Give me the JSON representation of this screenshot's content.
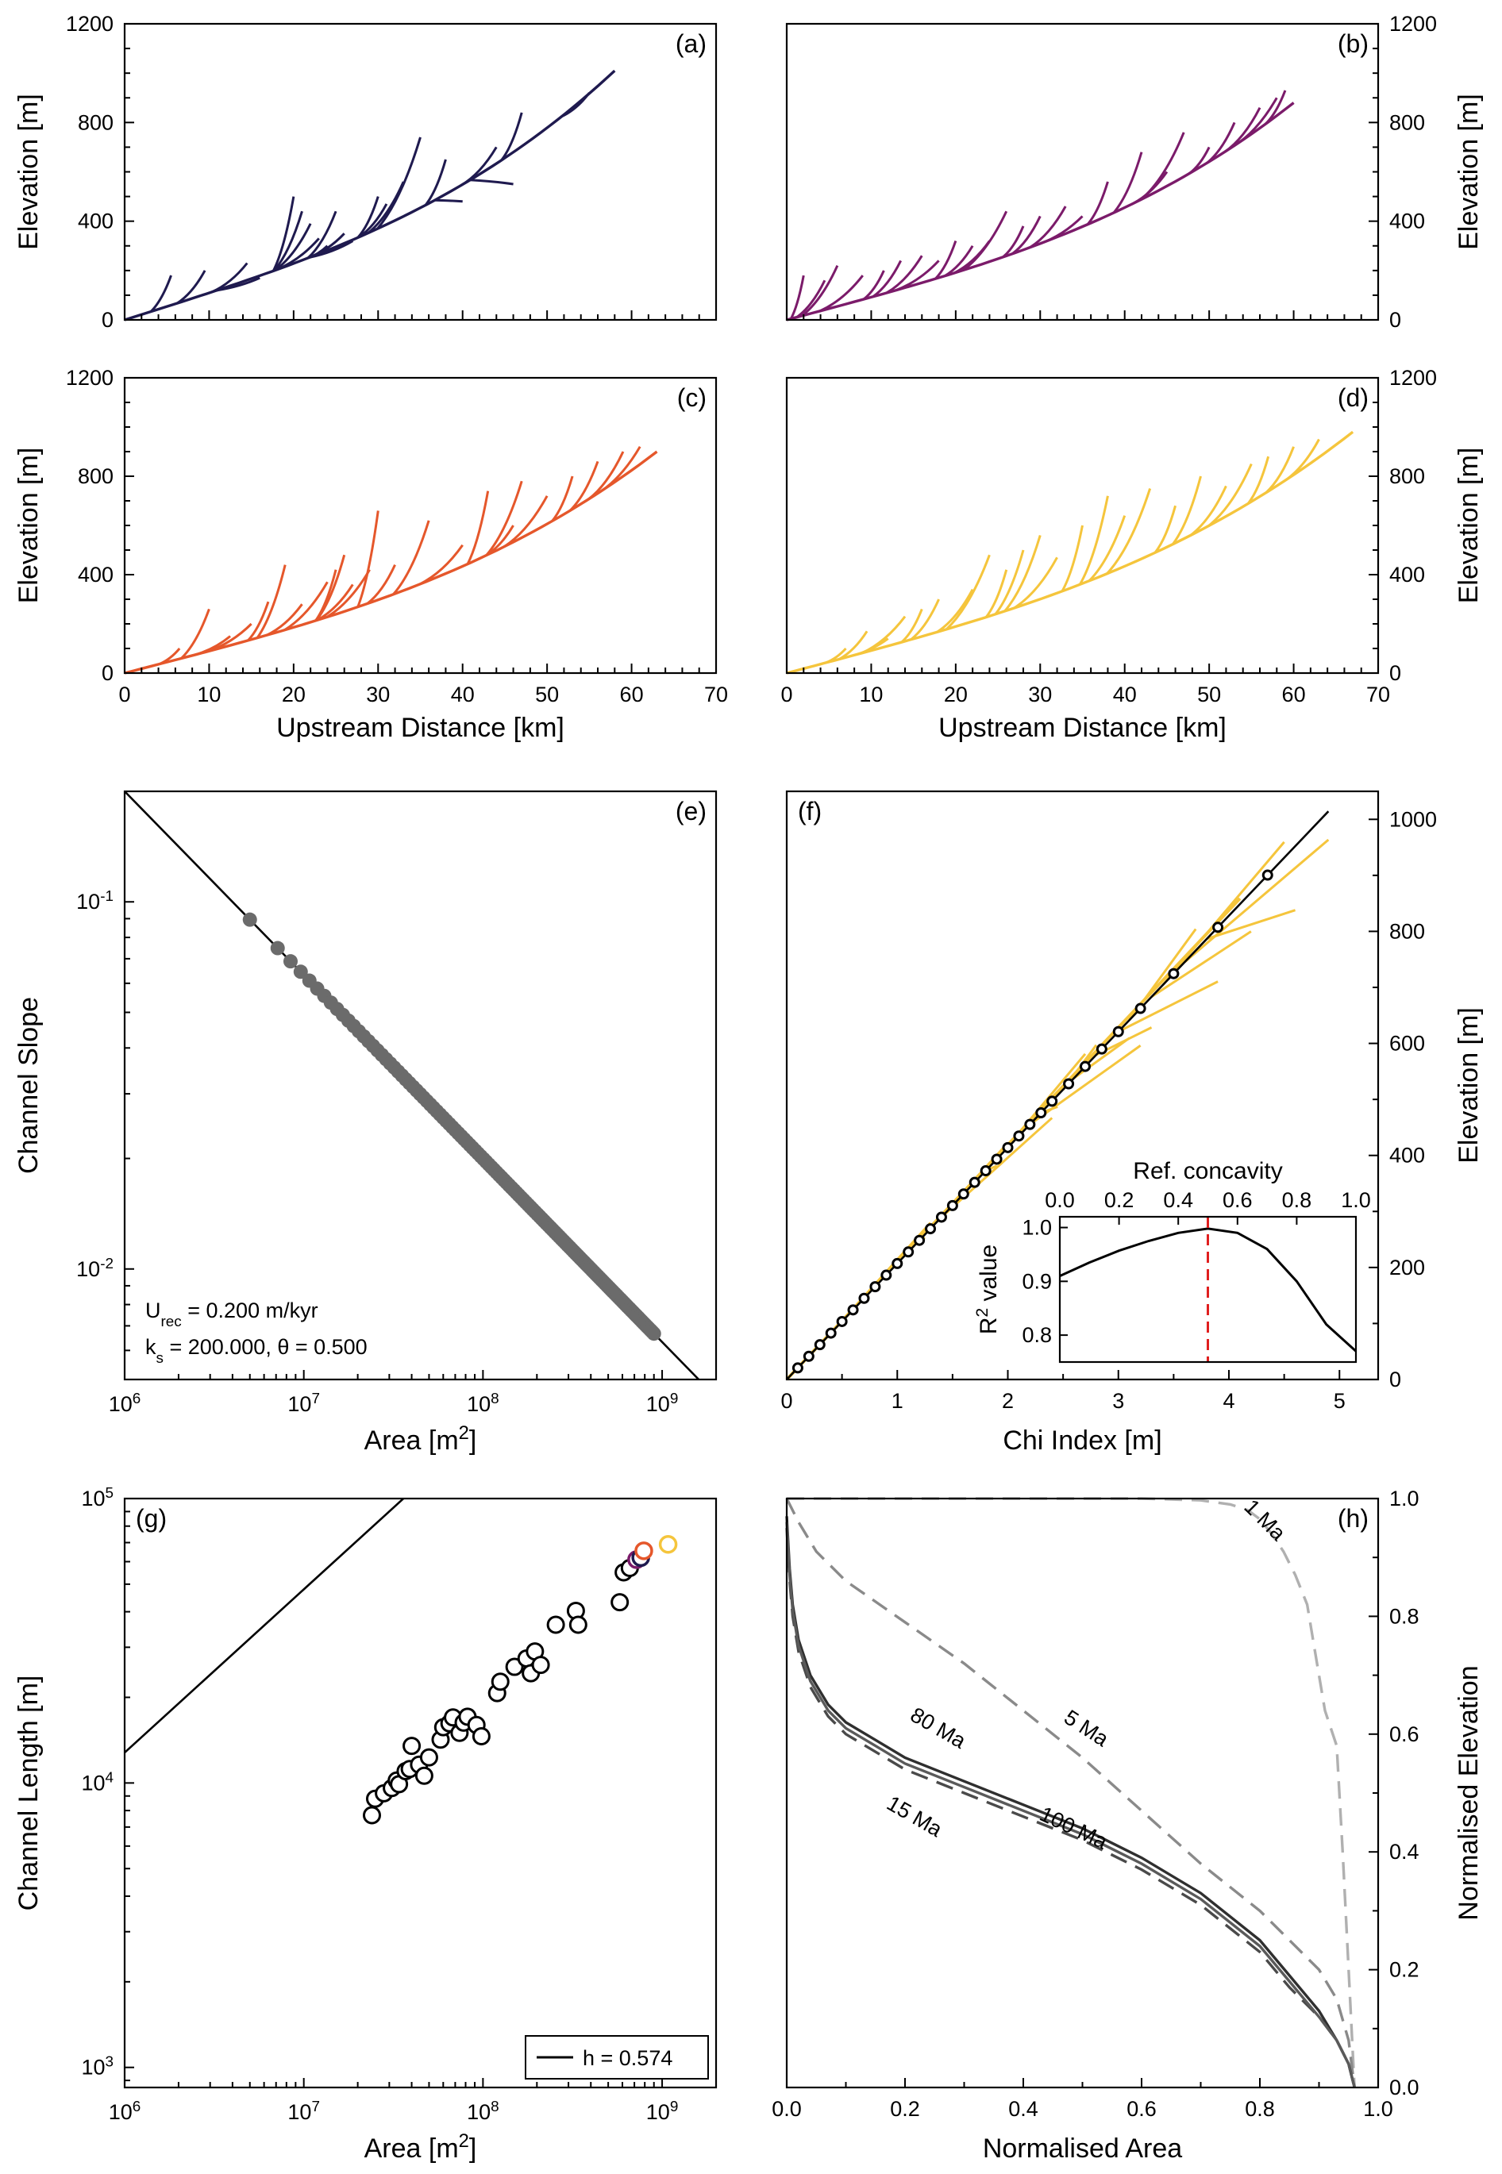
{
  "chart_data": [
    {
      "id": "a",
      "type": "line",
      "letter": "(a)",
      "xlim": [
        0,
        70
      ],
      "ylim": [
        0,
        1200
      ],
      "xticks": [
        0,
        10,
        20,
        30,
        40,
        50,
        60,
        70
      ],
      "yticks": [
        0,
        400,
        800,
        1200
      ],
      "ylabel": "Elevation [m]",
      "xlabel": "",
      "color": "#1f1a4f",
      "trunk": {
        "length": 58,
        "top": 1010
      },
      "tributaries": [
        [
          5.5,
          180
        ],
        [
          9.5,
          200
        ],
        [
          14.5,
          230
        ],
        [
          16,
          170
        ],
        [
          20,
          500
        ],
        [
          21,
          440
        ],
        [
          22,
          390
        ],
        [
          23,
          330
        ],
        [
          24,
          300
        ],
        [
          25,
          440
        ],
        [
          26,
          350
        ],
        [
          27,
          320
        ],
        [
          30,
          500
        ],
        [
          31,
          470
        ],
        [
          33,
          560
        ],
        [
          35,
          740
        ],
        [
          38,
          650
        ],
        [
          40,
          480
        ],
        [
          44,
          700
        ],
        [
          46,
          550
        ],
        [
          47,
          840
        ],
        [
          55,
          920
        ]
      ]
    },
    {
      "id": "b",
      "type": "line",
      "letter": "(b)",
      "xlim": [
        0,
        70
      ],
      "ylim": [
        0,
        1200
      ],
      "xticks": [
        0,
        10,
        20,
        30,
        40,
        50,
        60,
        70
      ],
      "yticks": [
        0,
        400,
        800,
        1200
      ],
      "ylabel": "Elevation [m]",
      "xlabel": "",
      "color": "#7b1b6a",
      "trunk": {
        "length": 60,
        "top": 880
      },
      "tributaries": [
        [
          2,
          180
        ],
        [
          4.5,
          160
        ],
        [
          6,
          220
        ],
        [
          9,
          180
        ],
        [
          11.5,
          200
        ],
        [
          13.5,
          240
        ],
        [
          16,
          260
        ],
        [
          18,
          240
        ],
        [
          20,
          320
        ],
        [
          22,
          300
        ],
        [
          24,
          320
        ],
        [
          26,
          440
        ],
        [
          28,
          380
        ],
        [
          30,
          420
        ],
        [
          33,
          460
        ],
        [
          35,
          420
        ],
        [
          38,
          560
        ],
        [
          42,
          680
        ],
        [
          45,
          600
        ],
        [
          47,
          760
        ],
        [
          50,
          700
        ],
        [
          53,
          800
        ],
        [
          56,
          860
        ],
        [
          58,
          900
        ],
        [
          59,
          930
        ]
      ]
    },
    {
      "id": "c",
      "type": "line",
      "letter": "(c)",
      "xlim": [
        0,
        70
      ],
      "ylim": [
        0,
        1200
      ],
      "xticks": [
        0,
        10,
        20,
        30,
        40,
        50,
        60,
        70
      ],
      "yticks": [
        0,
        400,
        800,
        1200
      ],
      "ylabel": "Elevation [m]",
      "xlabel": "Upstream Distance [km]",
      "color": "#e5572b",
      "trunk": {
        "length": 63,
        "top": 900
      },
      "tributaries": [
        [
          6.5,
          100
        ],
        [
          10,
          260
        ],
        [
          12.5,
          150
        ],
        [
          15,
          200
        ],
        [
          17,
          290
        ],
        [
          19,
          440
        ],
        [
          21,
          280
        ],
        [
          24,
          370
        ],
        [
          25,
          420
        ],
        [
          26,
          480
        ],
        [
          27,
          360
        ],
        [
          29,
          420
        ],
        [
          30,
          660
        ],
        [
          32,
          440
        ],
        [
          36,
          620
        ],
        [
          40,
          520
        ],
        [
          43,
          740
        ],
        [
          46,
          600
        ],
        [
          47,
          780
        ],
        [
          50,
          720
        ],
        [
          53,
          800
        ],
        [
          56,
          860
        ],
        [
          59,
          900
        ],
        [
          61,
          920
        ]
      ]
    },
    {
      "id": "d",
      "type": "line",
      "letter": "(d)",
      "xlim": [
        0,
        70
      ],
      "ylim": [
        0,
        1200
      ],
      "xticks": [
        0,
        10,
        20,
        30,
        40,
        50,
        60,
        70
      ],
      "yticks": [
        0,
        400,
        800,
        1200
      ],
      "ylabel": "Elevation [m]",
      "xlabel": "Upstream Distance [km]",
      "color": "#f5c53c",
      "trunk": {
        "length": 67,
        "top": 980
      },
      "tributaries": [
        [
          7,
          100
        ],
        [
          9.5,
          170
        ],
        [
          12,
          140
        ],
        [
          14,
          230
        ],
        [
          16,
          260
        ],
        [
          18,
          300
        ],
        [
          22,
          340
        ],
        [
          24,
          480
        ],
        [
          26,
          420
        ],
        [
          28,
          500
        ],
        [
          30,
          560
        ],
        [
          32,
          470
        ],
        [
          35,
          600
        ],
        [
          38,
          720
        ],
        [
          40,
          640
        ],
        [
          43,
          750
        ],
        [
          46,
          680
        ],
        [
          49,
          800
        ],
        [
          52,
          760
        ],
        [
          55,
          850
        ],
        [
          57,
          880
        ],
        [
          60,
          920
        ],
        [
          63,
          950
        ]
      ]
    },
    {
      "id": "e",
      "type": "scatter",
      "letter": "(e)",
      "xscale": "log",
      "yscale": "log",
      "xlim": [
        1000000,
        2000000000
      ],
      "ylim": [
        0.005,
        0.2
      ],
      "xlabel": "Area [m2]",
      "ylabel": "Channel Slope",
      "x_tick_labels": [
        "10^6",
        "10^7",
        "10^8",
        "10^9"
      ],
      "y_tick_labels": [
        "10^-2",
        "10^-1"
      ],
      "fit": {
        "ks": 200,
        "theta": 0.5
      },
      "points_x_range": [
        5000000,
        900000000
      ],
      "point_color": "#6b6b6b",
      "annotations": [
        "U_rec = 0.200 m/kyr",
        "k_s = 200.000, θ = 0.500"
      ]
    },
    {
      "id": "f",
      "type": "line",
      "letter": "(f)",
      "xlim": [
        0,
        5.35
      ],
      "ylim": [
        0,
        1050
      ],
      "xticks": [
        0,
        1,
        2,
        3,
        4,
        5
      ],
      "yticks": [
        0,
        200,
        400,
        600,
        800,
        1000
      ],
      "xlabel": "Chi Index [m]",
      "ylabel": "Elevation [m]",
      "series_color": "#f5c53c",
      "fit_slope": 207,
      "binned_x": [
        0.1,
        0.2,
        0.3,
        0.4,
        0.5,
        0.6,
        0.7,
        0.8,
        0.9,
        1.0,
        1.1,
        1.2,
        1.3,
        1.4,
        1.5,
        1.6,
        1.7,
        1.8,
        1.9,
        2.0,
        2.1,
        2.2,
        2.3,
        2.4,
        2.55,
        2.7,
        2.85,
        3.0,
        3.2,
        3.5,
        3.9,
        4.35
      ],
      "inset": {
        "xlabel": "Ref. concavity",
        "ylabel": "R2 value",
        "xlim": [
          0,
          1.0
        ],
        "ylim": [
          0.75,
          1.02
        ],
        "xticks": [
          0.0,
          0.2,
          0.4,
          0.6,
          0.8,
          1.0
        ],
        "yticks": [
          0.8,
          0.9,
          1.0
        ],
        "x_tick_labels": [
          "0.0",
          "0.2",
          "0.4",
          "0.6",
          "0.8",
          "1.0"
        ],
        "best": 0.5,
        "curve_x": [
          0,
          0.1,
          0.2,
          0.3,
          0.4,
          0.5,
          0.6,
          0.7,
          0.8,
          0.9,
          1.0
        ],
        "curve_y": [
          0.91,
          0.935,
          0.957,
          0.975,
          0.99,
          0.998,
          0.99,
          0.96,
          0.9,
          0.82,
          0.77
        ]
      }
    },
    {
      "id": "g",
      "type": "scatter",
      "letter": "(g)",
      "xscale": "log",
      "yscale": "log",
      "xlim": [
        1000000,
        2000000000
      ],
      "ylim": [
        850,
        100000
      ],
      "xlabel": "Area [m2]",
      "ylabel": "Channel Length [m]",
      "x_tick_labels": [
        "10^6",
        "10^7",
        "10^8",
        "10^9"
      ],
      "y_tick_labels": [
        "10^3",
        "10^4",
        "10^5"
      ],
      "fit": {
        "h": 0.574,
        "coef": 4.6
      },
      "legend": "h = 0.574",
      "points": [
        [
          24000000,
          7700
        ],
        [
          25000000,
          8800
        ],
        [
          28000000,
          9200
        ],
        [
          31000000,
          9600
        ],
        [
          33000000,
          10200
        ],
        [
          34000000,
          9900
        ],
        [
          37000000,
          11000
        ],
        [
          39000000,
          11200
        ],
        [
          40000000,
          13500
        ],
        [
          44000000,
          11600
        ],
        [
          47000000,
          10600
        ],
        [
          50000000,
          12300
        ],
        [
          58000000,
          14200
        ],
        [
          60000000,
          15700
        ],
        [
          65000000,
          16200
        ],
        [
          68000000,
          17000
        ],
        [
          74000000,
          15000
        ],
        [
          78000000,
          16300
        ],
        [
          82000000,
          17100
        ],
        [
          92000000,
          16000
        ],
        [
          98000000,
          14600
        ],
        [
          120000000,
          20700
        ],
        [
          125000000,
          22700
        ],
        [
          150000000,
          25600
        ],
        [
          175000000,
          27400
        ],
        [
          185000000,
          24300
        ],
        [
          195000000,
          29000
        ],
        [
          210000000,
          26000
        ],
        [
          255000000,
          36000
        ],
        [
          330000000,
          40300
        ],
        [
          340000000,
          36000
        ],
        [
          580000000,
          43200
        ],
        [
          610000000,
          55000
        ],
        [
          660000000,
          57000
        ]
      ],
      "highlight_points": [
        {
          "x": 720000000,
          "y": 61000,
          "color": "#7b1b6a"
        },
        {
          "x": 760000000,
          "y": 62000,
          "color": "#1f1a4f"
        },
        {
          "x": 790000000,
          "y": 65500,
          "color": "#e5572b"
        },
        {
          "x": 1080000000,
          "y": 69000,
          "color": "#f5c53c"
        }
      ]
    },
    {
      "id": "h",
      "type": "line",
      "letter": "(h)",
      "xlim": [
        0,
        1.0
      ],
      "ylim": [
        0,
        1.0
      ],
      "xticks": [
        0.0,
        0.2,
        0.4,
        0.6,
        0.8,
        1.0
      ],
      "yticks": [
        0.0,
        0.2,
        0.4,
        0.6,
        0.8,
        1.0
      ],
      "x_tick_labels": [
        "0.0",
        "0.2",
        "0.4",
        "0.6",
        "0.8",
        "1.0"
      ],
      "y_tick_labels": [
        "0.0",
        "0.2",
        "0.4",
        "0.6",
        "0.8",
        "1.0"
      ],
      "xlabel": "Normalised Area",
      "ylabel": "Normalised Elevation",
      "series": [
        {
          "name": "1 Ma",
          "color": "#b0b0b0",
          "dash": true,
          "x": [
            0,
            0.3,
            0.6,
            0.7,
            0.75,
            0.78,
            0.8,
            0.82,
            0.84,
            0.86,
            0.88,
            0.89,
            0.9,
            0.91,
            0.92,
            0.93,
            0.94,
            0.95,
            0.96
          ],
          "y": [
            1.0,
            1.0,
            1.0,
            0.997,
            0.99,
            0.98,
            0.965,
            0.94,
            0.91,
            0.87,
            0.82,
            0.76,
            0.7,
            0.64,
            0.61,
            0.58,
            0.4,
            0.2,
            0.0
          ]
        },
        {
          "name": "5 Ma",
          "color": "#8a8a8a",
          "dash": true,
          "x": [
            0,
            0.02,
            0.05,
            0.1,
            0.2,
            0.3,
            0.4,
            0.5,
            0.6,
            0.7,
            0.8,
            0.85,
            0.9,
            0.93,
            0.95,
            0.96
          ],
          "y": [
            1.0,
            0.96,
            0.91,
            0.86,
            0.79,
            0.72,
            0.64,
            0.56,
            0.47,
            0.38,
            0.3,
            0.25,
            0.2,
            0.15,
            0.08,
            0.0
          ]
        },
        {
          "name": "15 Ma",
          "color": "#4a4a4a",
          "dash": true,
          "x": [
            0,
            0.005,
            0.01,
            0.02,
            0.04,
            0.07,
            0.1,
            0.15,
            0.2,
            0.3,
            0.4,
            0.5,
            0.6,
            0.7,
            0.8,
            0.85,
            0.9,
            0.93,
            0.95,
            0.96
          ],
          "y": [
            0.95,
            0.86,
            0.8,
            0.74,
            0.68,
            0.63,
            0.6,
            0.57,
            0.54,
            0.5,
            0.46,
            0.42,
            0.37,
            0.31,
            0.23,
            0.17,
            0.12,
            0.08,
            0.04,
            0.0
          ]
        },
        {
          "name": "80 Ma",
          "color": "#2f2f2f",
          "dash": false,
          "x": [
            0,
            0.005,
            0.01,
            0.02,
            0.04,
            0.07,
            0.1,
            0.15,
            0.2,
            0.3,
            0.4,
            0.5,
            0.6,
            0.7,
            0.8,
            0.85,
            0.9,
            0.93,
            0.95,
            0.96
          ],
          "y": [
            0.97,
            0.88,
            0.82,
            0.76,
            0.7,
            0.65,
            0.62,
            0.59,
            0.56,
            0.52,
            0.48,
            0.44,
            0.39,
            0.33,
            0.25,
            0.19,
            0.13,
            0.08,
            0.04,
            0.0
          ]
        },
        {
          "name": "100 Ma",
          "color": "#5a5a5a",
          "dash": false,
          "x": [
            0,
            0.005,
            0.01,
            0.02,
            0.04,
            0.07,
            0.1,
            0.15,
            0.2,
            0.3,
            0.4,
            0.5,
            0.6,
            0.7,
            0.8,
            0.85,
            0.9,
            0.93,
            0.95,
            0.96
          ],
          "y": [
            0.96,
            0.87,
            0.81,
            0.75,
            0.69,
            0.64,
            0.61,
            0.58,
            0.55,
            0.51,
            0.47,
            0.43,
            0.38,
            0.32,
            0.24,
            0.18,
            0.12,
            0.08,
            0.04,
            0.0
          ]
        }
      ],
      "labels": [
        {
          "text": "1 Ma",
          "x": 0.8,
          "y": 0.955
        },
        {
          "text": "5 Ma",
          "x": 0.5,
          "y": 0.6
        },
        {
          "text": "80 Ma",
          "x": 0.25,
          "y": 0.6
        },
        {
          "text": "100 Ma",
          "x": 0.48,
          "y": 0.43
        },
        {
          "text": "15 Ma",
          "x": 0.21,
          "y": 0.45
        }
      ]
    }
  ]
}
